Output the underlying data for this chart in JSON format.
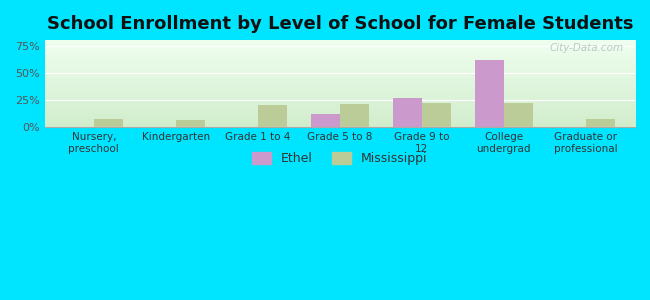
{
  "title": "School Enrollment by Level of School for Female Students",
  "categories": [
    "Nursery,\npreschool",
    "Kindergarten",
    "Grade 1 to 4",
    "Grade 5 to 8",
    "Grade 9 to\n12",
    "College\nundergrad",
    "Graduate or\nprofessional"
  ],
  "ethel_values": [
    0,
    0,
    0,
    12,
    27,
    62,
    0
  ],
  "mississippi_values": [
    8,
    7,
    20,
    21,
    22,
    22,
    8
  ],
  "ethel_color": "#cc99cc",
  "mississippi_color": "#bbcc99",
  "background_color": "#00e5ff",
  "yticks": [
    0,
    25,
    50,
    75
  ],
  "ylim": [
    0,
    80
  ],
  "bar_width": 0.35,
  "title_fontsize": 13,
  "legend_labels": [
    "Ethel",
    "Mississippi"
  ],
  "watermark": "City-Data.com"
}
